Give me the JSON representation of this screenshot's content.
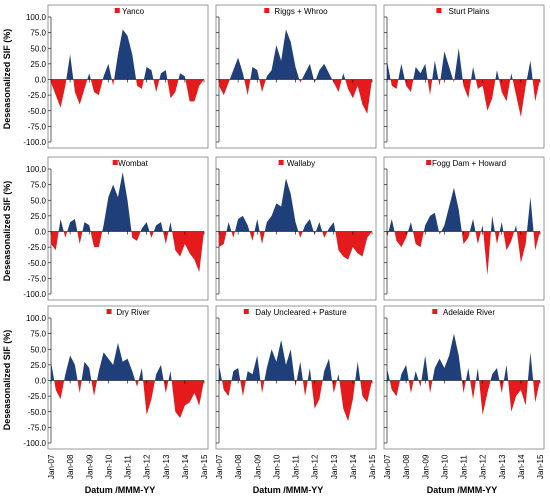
{
  "figure": {
    "ylabel": "Deseasonalized SIF (%)",
    "xlabel": "Datum /MMM-YY",
    "colors": {
      "positive": "#1f3f7a",
      "negative": "#e41a1c",
      "axis": "#000000",
      "frame": "#808080"
    }
  },
  "chart_data": [
    {
      "type": "area",
      "title": "Yanco",
      "y_ticks": [
        "100.0",
        "75.0",
        "50.0",
        "25.0",
        "0.0",
        "-25.0",
        "-50.0",
        "-75.0",
        "-100.0"
      ],
      "ylim": [
        -100,
        100
      ],
      "x_ticks": [
        "Jan-07",
        "Jan-08",
        "Jan-09",
        "Jan-10",
        "Jan-11",
        "Jan-12",
        "Jan-13",
        "Jan-14",
        "Jan-15"
      ],
      "xlim": [
        2007,
        2015
      ],
      "x": [
        2007.0,
        2007.25,
        2007.5,
        2007.75,
        2008.0,
        2008.25,
        2008.5,
        2008.75,
        2009.0,
        2009.25,
        2009.5,
        2009.75,
        2010.0,
        2010.25,
        2010.5,
        2010.75,
        2011.0,
        2011.25,
        2011.5,
        2011.75,
        2012.0,
        2012.25,
        2012.5,
        2012.75,
        2013.0,
        2013.25,
        2013.5,
        2013.75,
        2014.0,
        2014.25,
        2014.5,
        2014.75
      ],
      "values": [
        -5,
        -25,
        -45,
        -10,
        40,
        -20,
        -40,
        -15,
        10,
        -20,
        -25,
        5,
        25,
        -10,
        40,
        80,
        70,
        40,
        -10,
        -15,
        20,
        15,
        -20,
        10,
        15,
        -30,
        -20,
        10,
        5,
        -35,
        -35,
        -10
      ]
    },
    {
      "type": "area",
      "title": "Riggs  + Whroo",
      "y_ticks": [
        "100.0",
        "75.0",
        "50.0",
        "25.0",
        "0.0",
        "-25.0",
        "-50.0",
        "-75.0",
        "-100.0"
      ],
      "ylim": [
        -100,
        100
      ],
      "x_ticks": [
        "Jan-07",
        "Jan-08",
        "Jan-09",
        "Jan-10",
        "Jan-11",
        "Jan-12",
        "Jan-13",
        "Jan-14",
        "Jan-15"
      ],
      "xlim": [
        2007,
        2015
      ],
      "x": [
        2007.0,
        2007.25,
        2007.5,
        2007.75,
        2008.0,
        2008.25,
        2008.5,
        2008.75,
        2009.0,
        2009.25,
        2009.5,
        2009.75,
        2010.0,
        2010.25,
        2010.5,
        2010.75,
        2011.0,
        2011.25,
        2011.5,
        2011.75,
        2012.0,
        2012.25,
        2012.5,
        2012.75,
        2013.0,
        2013.25,
        2013.5,
        2013.75,
        2014.0,
        2014.25,
        2014.5,
        2014.75
      ],
      "values": [
        -10,
        -25,
        -5,
        15,
        35,
        10,
        -25,
        20,
        15,
        -20,
        5,
        15,
        55,
        30,
        80,
        60,
        20,
        -5,
        10,
        25,
        -5,
        15,
        25,
        10,
        -5,
        -20,
        10,
        -15,
        -30,
        -10,
        -40,
        -55
      ]
    },
    {
      "type": "area",
      "title": "Sturt Plains",
      "y_ticks": [
        "100.0",
        "75.0",
        "50.0",
        "25.0",
        "0.0",
        "-25.0",
        "-50.0",
        "-75.0",
        "-100.0"
      ],
      "ylim": [
        -100,
        100
      ],
      "x_ticks": [
        "Jan-07",
        "Jan-08",
        "Jan-09",
        "Jan-10",
        "Jan-11",
        "Jan-12",
        "Jan-13",
        "Jan-14",
        "Jan-15"
      ],
      "xlim": [
        2007,
        2015
      ],
      "x": [
        2007.0,
        2007.25,
        2007.5,
        2007.75,
        2008.0,
        2008.25,
        2008.5,
        2008.75,
        2009.0,
        2009.25,
        2009.5,
        2009.75,
        2010.0,
        2010.25,
        2010.5,
        2010.75,
        2011.0,
        2011.25,
        2011.5,
        2011.75,
        2012.0,
        2012.25,
        2012.5,
        2012.75,
        2013.0,
        2013.25,
        2013.5,
        2013.75,
        2014.0,
        2014.25,
        2014.5,
        2014.75
      ],
      "values": [
        30,
        -10,
        -15,
        25,
        -10,
        -20,
        20,
        10,
        25,
        -25,
        30,
        -10,
        45,
        20,
        -5,
        50,
        -10,
        -30,
        20,
        -15,
        -10,
        -50,
        -30,
        15,
        -20,
        -35,
        10,
        -25,
        -60,
        -10,
        30,
        -35
      ]
    },
    {
      "type": "area",
      "title": "Wombat",
      "y_ticks": [
        "100.0",
        "75.0",
        "50.0",
        "25.0",
        "0.0",
        "-25.0",
        "-50.0",
        "-75.0",
        "-100.0"
      ],
      "ylim": [
        -100,
        100
      ],
      "x_ticks": [
        "Jan-07",
        "Jan-08",
        "Jan-09",
        "Jan-10",
        "Jan-11",
        "Jan-12",
        "Jan-13",
        "Jan-14",
        "Jan-15"
      ],
      "xlim": [
        2007,
        2015
      ],
      "x": [
        2007.0,
        2007.25,
        2007.5,
        2007.75,
        2008.0,
        2008.25,
        2008.5,
        2008.75,
        2009.0,
        2009.25,
        2009.5,
        2009.75,
        2010.0,
        2010.25,
        2010.5,
        2010.75,
        2011.0,
        2011.25,
        2011.5,
        2011.75,
        2012.0,
        2012.25,
        2012.5,
        2012.75,
        2013.0,
        2013.25,
        2013.5,
        2013.75,
        2014.0,
        2014.25,
        2014.5,
        2014.75
      ],
      "values": [
        -20,
        -30,
        20,
        -10,
        15,
        20,
        -20,
        15,
        10,
        -25,
        -25,
        10,
        55,
        75,
        55,
        95,
        50,
        -10,
        -15,
        5,
        15,
        -10,
        10,
        15,
        -20,
        15,
        -30,
        -40,
        -20,
        -35,
        -45,
        -65
      ]
    },
    {
      "type": "area",
      "title": "Wallaby",
      "y_ticks": [
        "100.0",
        "75.0",
        "50.0",
        "25.0",
        "0.0",
        "-25.0",
        "-50.0",
        "-75.0",
        "-100.0"
      ],
      "ylim": [
        -100,
        100
      ],
      "x_ticks": [
        "Jan-07",
        "Jan-08",
        "Jan-09",
        "Jan-10",
        "Jan-11",
        "Jan-12",
        "Jan-13",
        "Jan-14",
        "Jan-15"
      ],
      "xlim": [
        2007,
        2015
      ],
      "x": [
        2007.0,
        2007.25,
        2007.5,
        2007.75,
        2008.0,
        2008.25,
        2008.5,
        2008.75,
        2009.0,
        2009.25,
        2009.5,
        2009.75,
        2010.0,
        2010.25,
        2010.5,
        2010.75,
        2011.0,
        2011.25,
        2011.5,
        2011.75,
        2012.0,
        2012.25,
        2012.5,
        2012.75,
        2013.0,
        2013.25,
        2013.5,
        2013.75,
        2014.0,
        2014.25,
        2014.5,
        2014.75
      ],
      "values": [
        -25,
        -20,
        15,
        -10,
        20,
        25,
        10,
        -15,
        20,
        -20,
        15,
        25,
        45,
        40,
        85,
        60,
        15,
        -10,
        10,
        20,
        -5,
        15,
        -10,
        5,
        15,
        -30,
        -40,
        -45,
        -25,
        -35,
        -40,
        -10
      ]
    },
    {
      "type": "area",
      "title": "Fogg Dam + Howard",
      "y_ticks": [
        "100.0",
        "75.0",
        "50.0",
        "25.0",
        "0.0",
        "-25.0",
        "-50.0",
        "-75.0",
        "-100.0"
      ],
      "ylim": [
        -100,
        100
      ],
      "x_ticks": [
        "Jan-07",
        "Jan-08",
        "Jan-09",
        "Jan-10",
        "Jan-11",
        "Jan-12",
        "Jan-13",
        "Jan-14",
        "Jan-15"
      ],
      "xlim": [
        2007,
        2015
      ],
      "x": [
        2007.0,
        2007.25,
        2007.5,
        2007.75,
        2008.0,
        2008.25,
        2008.5,
        2008.75,
        2009.0,
        2009.25,
        2009.5,
        2009.75,
        2010.0,
        2010.25,
        2010.5,
        2010.75,
        2011.0,
        2011.25,
        2011.5,
        2011.75,
        2012.0,
        2012.25,
        2012.5,
        2012.75,
        2013.0,
        2013.25,
        2013.5,
        2013.75,
        2014.0,
        2014.25,
        2014.5,
        2014.75
      ],
      "values": [
        -10,
        20,
        -15,
        -25,
        -10,
        15,
        -20,
        -25,
        10,
        25,
        30,
        -5,
        10,
        40,
        70,
        35,
        -20,
        -10,
        20,
        -20,
        10,
        -70,
        25,
        -20,
        15,
        -30,
        -15,
        10,
        -50,
        -20,
        55,
        -30
      ]
    },
    {
      "type": "area",
      "title": "Dry River",
      "y_ticks": [
        "100.0",
        "75.0",
        "50.0",
        "25.0",
        "0.0",
        "-25.0",
        "-50.0",
        "-75.0",
        "-100.0"
      ],
      "ylim": [
        -100,
        100
      ],
      "x_ticks": [
        "Jan-07",
        "Jan-08",
        "Jan-09",
        "Jan-10",
        "Jan-11",
        "Jan-12",
        "Jan-13",
        "Jan-14",
        "Jan-15"
      ],
      "xlim": [
        2007,
        2015
      ],
      "x": [
        2007.0,
        2007.25,
        2007.5,
        2007.75,
        2008.0,
        2008.25,
        2008.5,
        2008.75,
        2009.0,
        2009.25,
        2009.5,
        2009.75,
        2010.0,
        2010.25,
        2010.5,
        2010.75,
        2011.0,
        2011.25,
        2011.5,
        2011.75,
        2012.0,
        2012.25,
        2012.5,
        2012.75,
        2013.0,
        2013.25,
        2013.5,
        2013.75,
        2014.0,
        2014.25,
        2014.5,
        2014.75
      ],
      "values": [
        30,
        -15,
        -30,
        10,
        40,
        25,
        -20,
        30,
        20,
        -25,
        15,
        45,
        35,
        25,
        60,
        30,
        35,
        15,
        -10,
        20,
        -55,
        -30,
        10,
        25,
        -20,
        15,
        -50,
        -60,
        -40,
        -35,
        -20,
        -40
      ]
    },
    {
      "type": "area",
      "title": "Daly Uncleared + Pasture",
      "y_ticks": [
        "100.0",
        "75.0",
        "50.0",
        "25.0",
        "0.0",
        "-25.0",
        "-50.0",
        "-75.0",
        "-100.0"
      ],
      "ylim": [
        -100,
        100
      ],
      "x_ticks": [
        "Jan-07",
        "Jan-08",
        "Jan-09",
        "Jan-10",
        "Jan-11",
        "Jan-12",
        "Jan-13",
        "Jan-14",
        "Jan-15"
      ],
      "xlim": [
        2007,
        2015
      ],
      "x": [
        2007.0,
        2007.25,
        2007.5,
        2007.75,
        2008.0,
        2008.25,
        2008.5,
        2008.75,
        2009.0,
        2009.25,
        2009.5,
        2009.75,
        2010.0,
        2010.25,
        2010.5,
        2010.75,
        2011.0,
        2011.25,
        2011.5,
        2011.75,
        2012.0,
        2012.25,
        2012.5,
        2012.75,
        2013.0,
        2013.25,
        2013.5,
        2013.75,
        2014.0,
        2014.25,
        2014.5,
        2014.75
      ],
      "values": [
        25,
        -15,
        -25,
        15,
        20,
        -25,
        15,
        10,
        40,
        -20,
        20,
        50,
        30,
        65,
        25,
        50,
        -10,
        30,
        -25,
        20,
        -45,
        -30,
        15,
        35,
        -20,
        10,
        -45,
        -65,
        -30,
        30,
        -25,
        -35
      ]
    },
    {
      "type": "area",
      "title": "Adelaide River",
      "y_ticks": [
        "100.0",
        "75.0",
        "50.0",
        "25.0",
        "0.0",
        "-25.0",
        "-50.0",
        "-75.0",
        "-100.0"
      ],
      "ylim": [
        -100,
        100
      ],
      "x_ticks": [
        "Jan-07",
        "Jan-08",
        "Jan-09",
        "Jan-10",
        "Jan-11",
        "Jan-12",
        "Jan-13",
        "Jan-14",
        "Jan-15"
      ],
      "xlim": [
        2007,
        2015
      ],
      "x": [
        2007.0,
        2007.25,
        2007.5,
        2007.75,
        2008.0,
        2008.25,
        2008.5,
        2008.75,
        2009.0,
        2009.25,
        2009.5,
        2009.75,
        2010.0,
        2010.25,
        2010.5,
        2010.75,
        2011.0,
        2011.25,
        2011.5,
        2011.75,
        2012.0,
        2012.25,
        2012.5,
        2012.75,
        2013.0,
        2013.25,
        2013.5,
        2013.75,
        2014.0,
        2014.25,
        2014.5,
        2014.75
      ],
      "values": [
        20,
        -15,
        -25,
        10,
        25,
        -20,
        15,
        -10,
        40,
        -20,
        20,
        35,
        20,
        40,
        75,
        40,
        -20,
        20,
        -30,
        20,
        -55,
        -20,
        10,
        20,
        -20,
        25,
        -50,
        -25,
        -15,
        -40,
        45,
        -35
      ]
    }
  ]
}
